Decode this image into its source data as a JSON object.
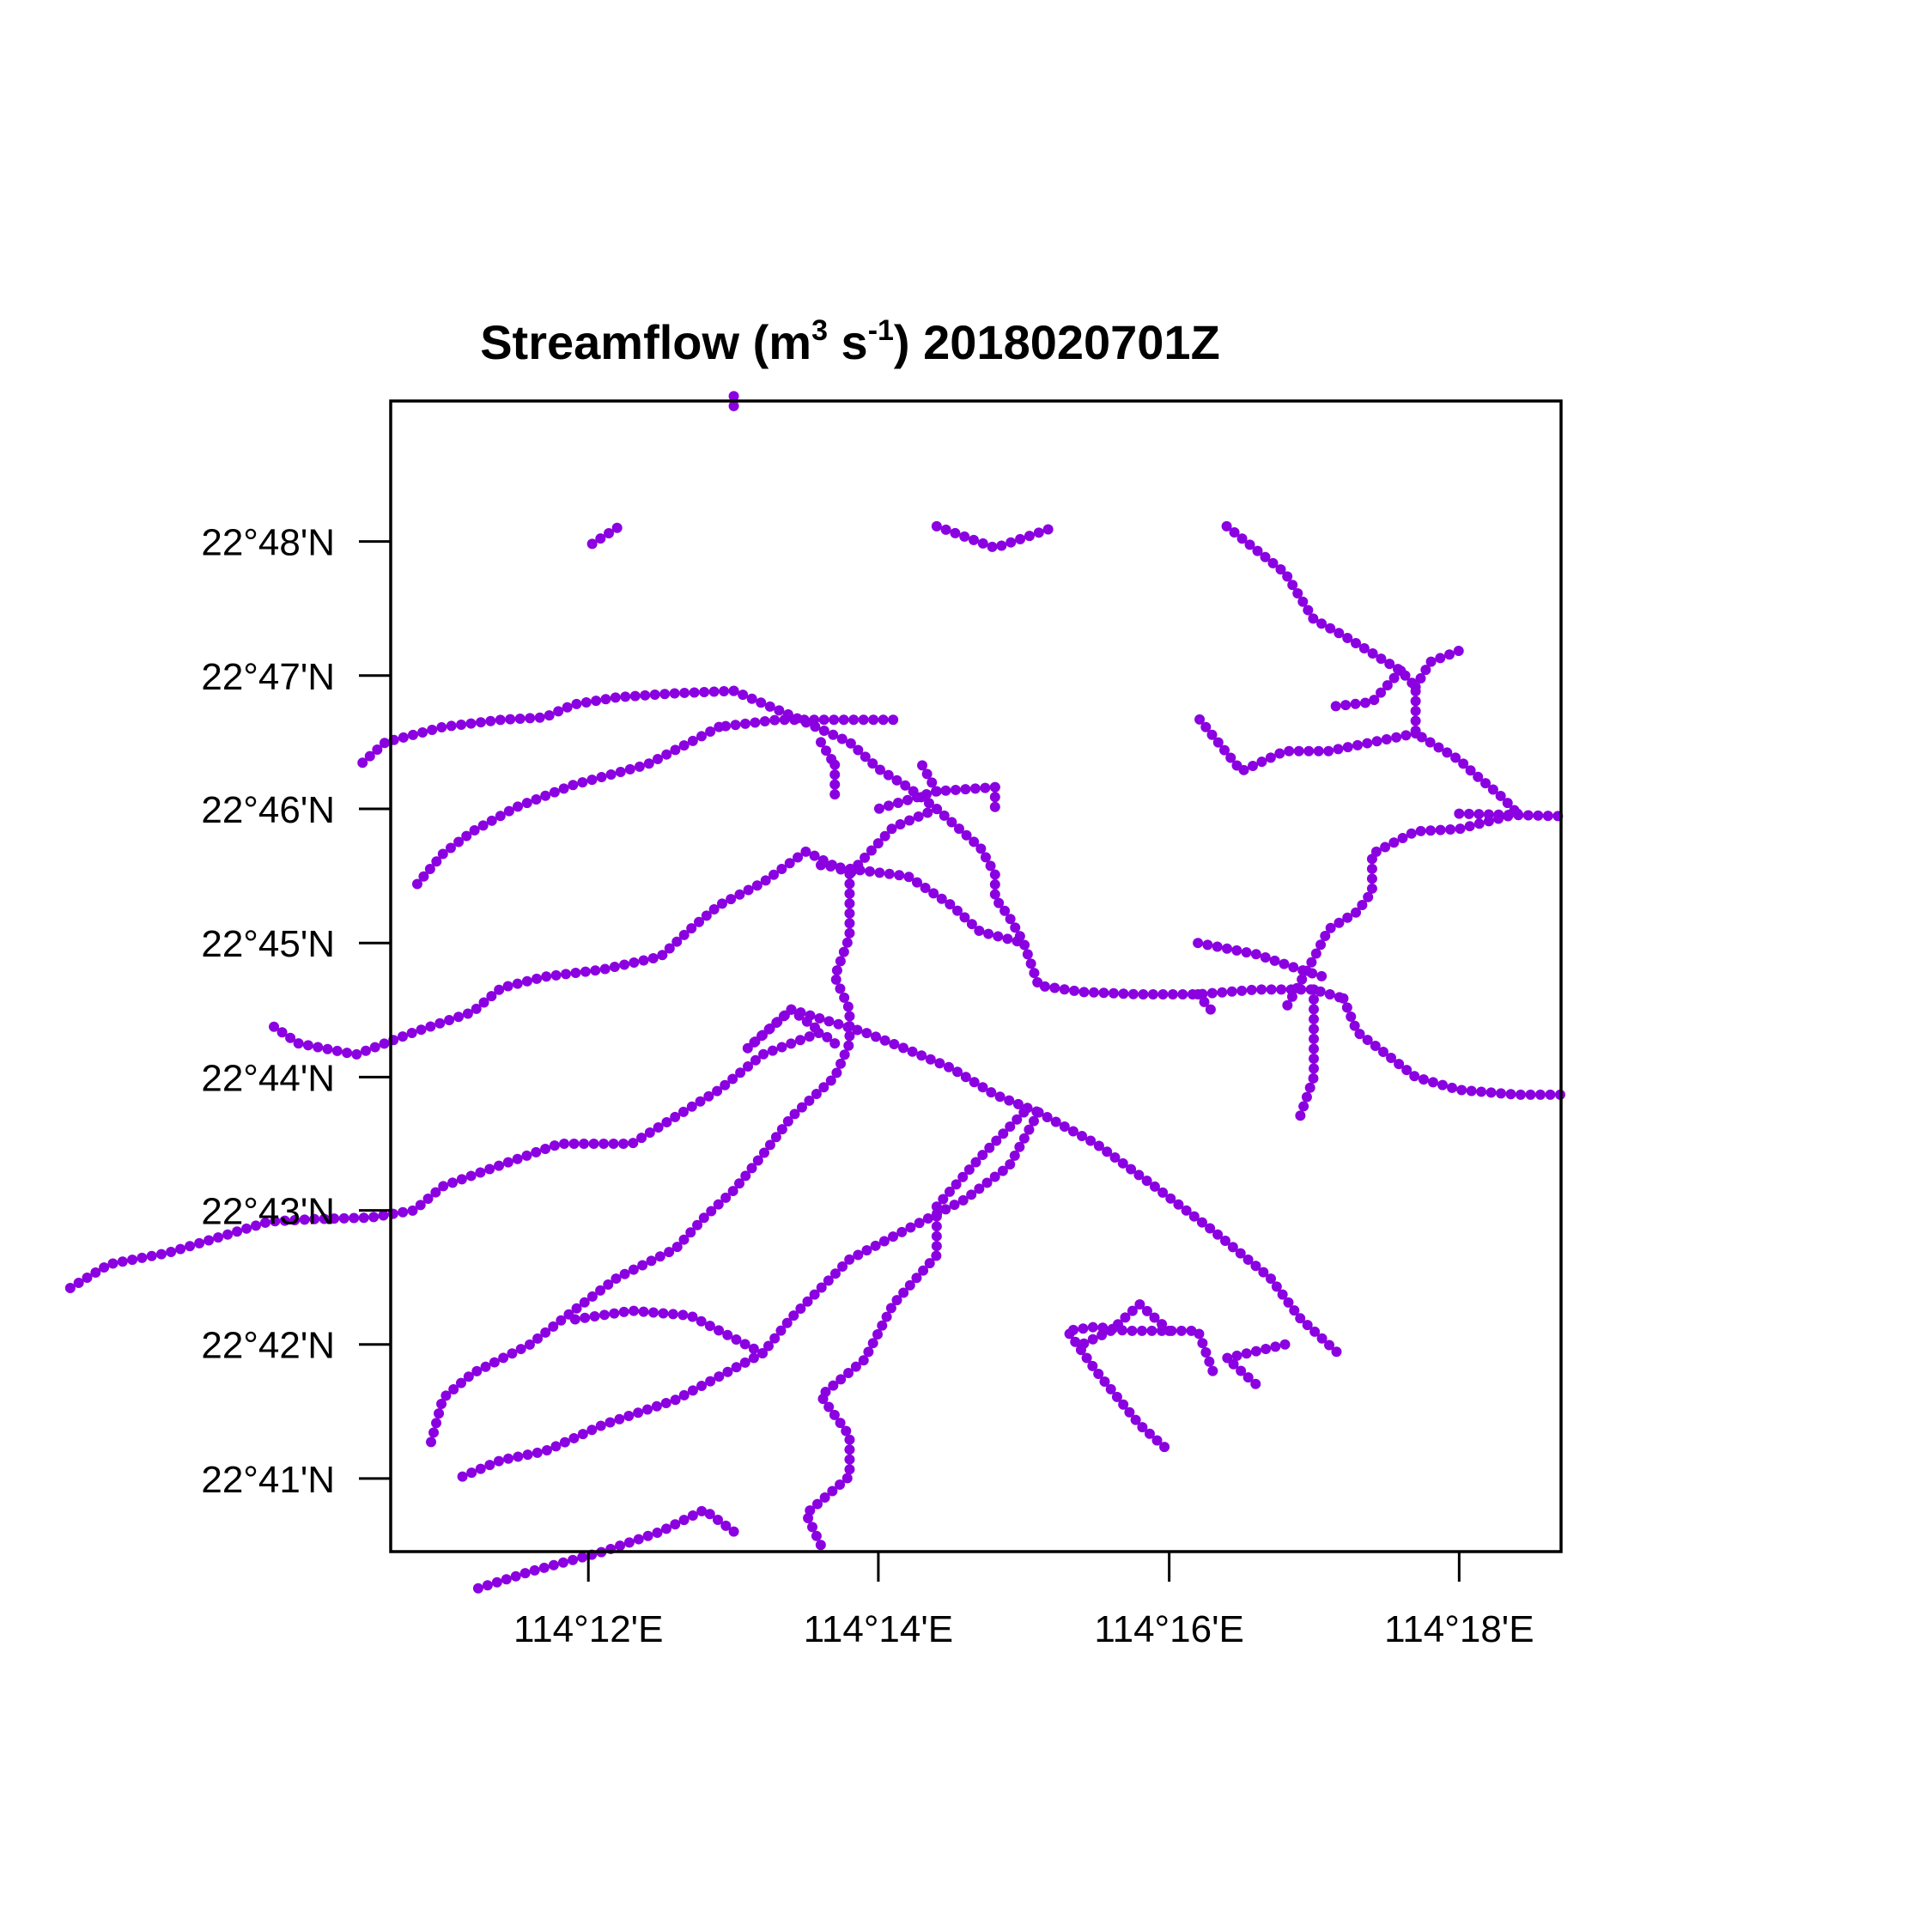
{
  "title": {
    "prefix": "Streamflow (m",
    "sup1": "3",
    "mid": " s",
    "sup2": "-1",
    "suffix": ")  2018020701Z"
  },
  "map": {
    "lon_range": [
      114.1773,
      114.3117
    ],
    "lat_range": [
      22.6742,
      22.8175
    ],
    "x_ticks": [
      {
        "value": 114.2,
        "label": "114°12'E"
      },
      {
        "value": 114.2333,
        "label": "114°14'E"
      },
      {
        "value": 114.2667,
        "label": "114°16'E"
      },
      {
        "value": 114.3,
        "label": "114°18'E"
      }
    ],
    "y_ticks": [
      {
        "value": 22.8,
        "label": "22°48'N"
      },
      {
        "value": 22.7833,
        "label": "22°47'N"
      },
      {
        "value": 22.7667,
        "label": "22°46'N"
      },
      {
        "value": 22.75,
        "label": "22°45'N"
      },
      {
        "value": 22.7333,
        "label": "22°44'N"
      },
      {
        "value": 22.7167,
        "label": "22°43'N"
      },
      {
        "value": 22.7,
        "label": "22°42'N"
      },
      {
        "value": 22.6833,
        "label": "22°41'N"
      }
    ],
    "stream_color": "#8B00E0",
    "streams": [
      [
        [
          114.24,
          22.8019
        ],
        [
          114.2467,
          22.7992
        ],
        [
          114.2533,
          22.8017
        ]
      ],
      [
        [
          114.2733,
          22.8019
        ],
        [
          114.28,
          22.7961
        ],
        [
          114.2833,
          22.7903
        ],
        [
          114.2867,
          22.7883
        ],
        [
          114.2933,
          22.7839
        ],
        [
          114.295,
          22.7819
        ],
        [
          114.295,
          22.7761
        ],
        [
          114.3,
          22.7728
        ],
        [
          114.3017,
          22.7711
        ],
        [
          114.305,
          22.7681
        ],
        [
          114.3067,
          22.7661
        ]
      ],
      [
        [
          114.3,
          22.7661
        ],
        [
          114.3117,
          22.7658
        ]
      ],
      [
        [
          114.295,
          22.7761
        ],
        [
          114.29,
          22.775
        ],
        [
          114.285,
          22.7739
        ],
        [
          114.28,
          22.7739
        ],
        [
          114.275,
          22.7714
        ],
        [
          114.27,
          22.7781
        ]
      ],
      [
        [
          114.295,
          22.7819
        ],
        [
          114.2967,
          22.785
        ],
        [
          114.3,
          22.7864
        ]
      ],
      [
        [
          114.2933,
          22.7839
        ],
        [
          114.29,
          22.78
        ],
        [
          114.285,
          22.7794
        ]
      ],
      [
        [
          114.3067,
          22.7661
        ],
        [
          114.3,
          22.7642
        ],
        [
          114.295,
          22.7639
        ],
        [
          114.29,
          22.7611
        ],
        [
          114.29,
          22.7564
        ],
        [
          114.2883,
          22.7539
        ],
        [
          114.285,
          22.7517
        ],
        [
          114.2833,
          22.7481
        ],
        [
          114.28,
          22.7417
        ]
      ],
      [
        [
          114.27,
          22.75
        ],
        [
          114.2767,
          22.7486
        ],
        [
          114.2817,
          22.7467
        ],
        [
          114.285,
          22.7456
        ]
      ],
      [
        [
          114.2167,
          22.7814
        ],
        [
          114.21,
          22.7811
        ],
        [
          114.2033,
          22.7806
        ],
        [
          114.1983,
          22.7797
        ],
        [
          114.195,
          22.7781
        ],
        [
          114.19,
          22.7778
        ],
        [
          114.1833,
          22.7769
        ],
        [
          114.1767,
          22.775
        ],
        [
          114.1733,
          22.7717
        ]
      ],
      [
        [
          114.2167,
          22.7814
        ],
        [
          114.2233,
          22.7783
        ],
        [
          114.23,
          22.775
        ],
        [
          114.2333,
          22.7717
        ],
        [
          114.2367,
          22.7694
        ],
        [
          114.24,
          22.7667
        ],
        [
          114.245,
          22.7619
        ],
        [
          114.2467,
          22.7586
        ],
        [
          114.2467,
          22.7556
        ],
        [
          114.2483,
          22.7533
        ],
        [
          114.25,
          22.75
        ],
        [
          114.2517,
          22.7447
        ],
        [
          114.2567,
          22.7439
        ],
        [
          114.2633,
          22.7436
        ],
        [
          114.27,
          22.7436
        ],
        [
          114.2767,
          22.7442
        ],
        [
          114.2833,
          22.7442
        ],
        [
          114.2867,
          22.7431
        ]
      ],
      [
        [
          114.2867,
          22.7431
        ],
        [
          114.2883,
          22.7389
        ],
        [
          114.2917,
          22.7361
        ],
        [
          114.295,
          22.7333
        ],
        [
          114.3,
          22.7317
        ],
        [
          114.3067,
          22.7311
        ],
        [
          114.3117,
          22.7311
        ]
      ],
      [
        [
          114.2833,
          22.7442
        ],
        [
          114.2833,
          22.7375
        ],
        [
          114.2833,
          22.7333
        ],
        [
          114.2817,
          22.7283
        ]
      ],
      [
        [
          114.27,
          22.7436
        ],
        [
          114.2717,
          22.7414
        ]
      ],
      [
        [
          114.235,
          22.7778
        ],
        [
          114.2217,
          22.7778
        ],
        [
          114.215,
          22.7769
        ]
      ],
      [
        [
          114.2467,
          22.7694
        ],
        [
          114.24,
          22.7689
        ],
        [
          114.2333,
          22.7667
        ]
      ],
      [
        [
          114.2267,
          22.7597
        ],
        [
          114.2367,
          22.7583
        ],
        [
          114.2417,
          22.7547
        ],
        [
          114.245,
          22.7514
        ],
        [
          114.25,
          22.75
        ]
      ],
      [
        [
          114.2233,
          22.7417
        ],
        [
          114.2317,
          22.7389
        ],
        [
          114.2367,
          22.7367
        ],
        [
          114.2417,
          22.7344
        ],
        [
          114.2467,
          22.7311
        ],
        [
          114.2517,
          22.7289
        ]
      ],
      [
        [
          114.2517,
          22.7289
        ],
        [
          114.2583,
          22.725
        ],
        [
          114.265,
          22.7197
        ],
        [
          114.2717,
          22.7142
        ],
        [
          114.2783,
          22.7083
        ],
        [
          114.2817,
          22.7033
        ],
        [
          114.2867,
          22.6983
        ]
      ],
      [
        [
          114.2517,
          22.7289
        ],
        [
          114.2483,
          22.7222
        ],
        [
          114.2433,
          22.7181
        ],
        [
          114.2367,
          22.7144
        ],
        [
          114.23,
          22.7106
        ],
        [
          114.2233,
          22.7033
        ],
        [
          114.22,
          22.6989
        ]
      ],
      [
        [
          114.22,
          22.6989
        ],
        [
          114.21,
          22.6931
        ],
        [
          114.2017,
          22.69
        ],
        [
          114.1983,
          22.6883
        ],
        [
          114.195,
          22.6867
        ],
        [
          114.19,
          22.6856
        ],
        [
          114.185,
          22.6833
        ]
      ],
      [
        [
          114.22,
          22.6989
        ],
        [
          114.2117,
          22.7036
        ],
        [
          114.205,
          22.7042
        ],
        [
          114.1983,
          22.7031
        ]
      ],
      [
        [
          114.25,
          22.7289
        ],
        [
          114.245,
          22.7233
        ],
        [
          114.24,
          22.7172
        ],
        [
          114.24,
          22.7111
        ],
        [
          114.235,
          22.705
        ],
        [
          114.2317,
          22.6981
        ],
        [
          114.2267,
          22.6936
        ],
        [
          114.23,
          22.6886
        ],
        [
          114.23,
          22.6836
        ],
        [
          114.225,
          22.6789
        ],
        [
          114.2267,
          22.675
        ]
      ],
      [
        [
          114.2167,
          22.6767
        ],
        [
          114.2133,
          22.6794
        ],
        [
          114.2083,
          22.6767
        ],
        [
          114.2017,
          22.6742
        ],
        [
          114.1933,
          22.6717
        ],
        [
          114.1867,
          22.6694
        ]
      ],
      [
        [
          114.2717,
          22.6967
        ],
        [
          114.27,
          22.7017
        ],
        [
          114.2667,
          22.7017
        ],
        [
          114.2617,
          22.7017
        ],
        [
          114.2583,
          22.7022
        ],
        [
          114.255,
          22.7017
        ],
        [
          114.2583,
          22.6967
        ],
        [
          114.2633,
          22.69
        ],
        [
          114.2667,
          22.6867
        ]
      ],
      [
        [
          114.2667,
          22.7017
        ],
        [
          114.2633,
          22.705
        ],
        [
          114.26,
          22.7017
        ],
        [
          114.2567,
          22.7
        ]
      ],
      [
        [
          114.28,
          22.7
        ],
        [
          114.2733,
          22.6983
        ],
        [
          114.2767,
          22.695
        ]
      ],
      [
        [
          114.2233,
          22.7417
        ],
        [
          114.2267,
          22.7389
        ],
        [
          114.22,
          22.7361
        ],
        [
          114.215,
          22.7317
        ],
        [
          114.205,
          22.725
        ],
        [
          114.1967,
          22.725
        ],
        [
          114.1883,
          22.7217
        ],
        [
          114.1833,
          22.7197
        ],
        [
          114.18,
          22.7167
        ],
        [
          114.175,
          22.7158
        ],
        [
          114.1683,
          22.7156
        ],
        [
          114.1633,
          22.7153
        ],
        [
          114.1583,
          22.7136
        ],
        [
          114.1517,
          22.7114
        ],
        [
          114.145,
          22.71
        ],
        [
          114.14,
          22.7067
        ]
      ],
      [
        [
          114.2283,
          22.7375
        ],
        [
          114.2267,
          22.7389
        ]
      ],
      [
        [
          114.23,
          22.7586
        ],
        [
          114.225,
          22.7614
        ],
        [
          114.22,
          22.7575
        ],
        [
          114.215,
          22.7547
        ],
        [
          114.2117,
          22.7517
        ],
        [
          114.2083,
          22.7483
        ],
        [
          114.2017,
          22.7467
        ],
        [
          114.195,
          22.7458
        ],
        [
          114.19,
          22.7444
        ],
        [
          114.1867,
          22.7414
        ],
        [
          114.18,
          22.7389
        ],
        [
          114.1733,
          22.7361
        ],
        [
          114.1667,
          22.7375
        ],
        [
          114.1633,
          22.74
        ]
      ],
      [
        [
          114.24,
          22.7667
        ],
        [
          114.235,
          22.7644
        ],
        [
          114.23,
          22.7586
        ]
      ],
      [
        [
          114.2467,
          22.7694
        ],
        [
          114.2467,
          22.7667
        ]
      ],
      [
        [
          114.23,
          22.7586
        ],
        [
          114.23,
          22.7508
        ],
        [
          114.2283,
          22.7458
        ],
        [
          114.23,
          22.7417
        ],
        [
          114.23,
          22.7375
        ],
        [
          114.2283,
          22.7333
        ],
        [
          114.2233,
          22.7283
        ],
        [
          114.22,
          22.7236
        ],
        [
          114.2167,
          22.7192
        ],
        [
          114.2133,
          22.7158
        ],
        [
          114.21,
          22.7119
        ],
        [
          114.2033,
          22.7083
        ],
        [
          114.1983,
          22.7042
        ],
        [
          114.1933,
          22.7
        ],
        [
          114.1867,
          22.6964
        ],
        [
          114.1833,
          22.6933
        ],
        [
          114.1817,
          22.6869
        ]
      ],
      [
        [
          114.2233,
          22.7417
        ],
        [
          114.2183,
          22.7369
        ]
      ],
      [
        [
          114.2267,
          22.775
        ],
        [
          114.2283,
          22.7722
        ]
      ],
      [
        [
          114.2033,
          22.8017
        ],
        [
          114.2,
          22.7994
        ]
      ],
      [
        [
          114.215,
          22.7769
        ],
        [
          114.2117,
          22.775
        ],
        [
          114.2067,
          22.7722
        ],
        [
          114.1983,
          22.7697
        ],
        [
          114.1917,
          22.7669
        ],
        [
          114.1867,
          22.7639
        ],
        [
          114.1833,
          22.7611
        ],
        [
          114.18,
          22.7569
        ]
      ],
      [
        [
          114.2283,
          22.7722
        ],
        [
          114.2283,
          22.7681
        ]
      ],
      [
        [
          114.24,
          22.7689
        ],
        [
          114.2383,
          22.7722
        ]
      ],
      [
        [
          114.2183,
          22.7369
        ],
        [
          114.2233,
          22.7417
        ]
      ],
      [
        [
          114.2167,
          22.8181
        ],
        [
          114.2167,
          22.8164
        ]
      ]
    ]
  }
}
